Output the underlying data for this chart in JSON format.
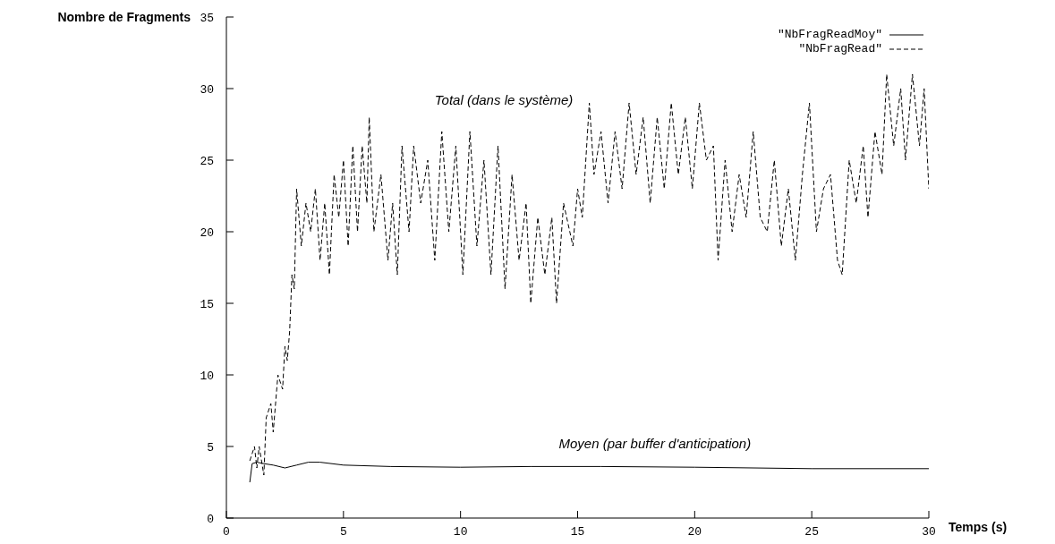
{
  "chart_data": {
    "type": "line",
    "xlabel": "Temps (s)",
    "ylabel": "Nombre de Fragments",
    "xlim": [
      0,
      30
    ],
    "xticks": [
      0,
      5,
      10,
      15,
      20,
      25,
      30
    ],
    "ylim": [
      0,
      35
    ],
    "yticks": [
      0,
      5,
      10,
      15,
      20,
      25,
      30,
      35
    ],
    "grid": false,
    "legend": "top right",
    "marker": "none",
    "annotations": [
      "Total (dans le système)",
      "Moyen (par buffer d'anticipation)"
    ],
    "series": [
      {
        "name": "\"NbFragReadMoy\"",
        "color": "#000000",
        "line_style": "solid",
        "x": [
          1.0,
          1.1,
          1.3,
          1.6,
          2.0,
          2.5,
          3.0,
          3.5,
          4.0,
          5,
          7,
          10,
          13,
          16,
          20,
          25,
          30
        ],
        "values": [
          2.5,
          3.8,
          3.9,
          3.8,
          3.7,
          3.5,
          3.7,
          3.9,
          3.9,
          3.7,
          3.6,
          3.55,
          3.6,
          3.6,
          3.55,
          3.45,
          3.45
        ]
      },
      {
        "name": "\"NbFragRead\"",
        "color": "#000000",
        "line_style": "dashed",
        "x": [
          1.0,
          1.2,
          1.3,
          1.4,
          1.6,
          1.7,
          1.9,
          2.0,
          2.2,
          2.4,
          2.5,
          2.6,
          2.7,
          2.8,
          2.9,
          3.0,
          3.2,
          3.4,
          3.6,
          3.8,
          4.0,
          4.2,
          4.4,
          4.6,
          4.8,
          5.0,
          5.2,
          5.4,
          5.6,
          5.8,
          6.0,
          6.1,
          6.3,
          6.6,
          6.9,
          7.1,
          7.3,
          7.5,
          7.8,
          8.0,
          8.3,
          8.6,
          8.9,
          9.2,
          9.5,
          9.8,
          10.1,
          10.4,
          10.7,
          11.0,
          11.3,
          11.6,
          11.9,
          12.2,
          12.5,
          12.8,
          13.0,
          13.3,
          13.6,
          13.9,
          14.1,
          14.4,
          14.8,
          15.0,
          15.2,
          15.5,
          15.7,
          16.0,
          16.3,
          16.6,
          16.9,
          17.2,
          17.5,
          17.8,
          18.1,
          18.4,
          18.7,
          19.0,
          19.3,
          19.6,
          19.9,
          20.2,
          20.5,
          20.8,
          21.0,
          21.3,
          21.6,
          21.9,
          22.2,
          22.5,
          22.8,
          23.1,
          23.4,
          23.7,
          24.0,
          24.3,
          24.6,
          24.9,
          25.2,
          25.5,
          25.8,
          26.1,
          26.3,
          26.6,
          26.9,
          27.2,
          27.4,
          27.7,
          28.0,
          28.2,
          28.5,
          28.8,
          29.0,
          29.3,
          29.6,
          29.8,
          30.0
        ],
        "values": [
          4,
          5,
          3.5,
          5,
          3,
          7,
          8,
          6,
          10,
          9,
          12,
          11,
          13,
          17,
          16,
          23,
          19,
          22,
          20,
          23,
          18,
          22,
          17,
          24,
          21,
          25,
          19,
          26,
          20,
          26,
          22,
          28,
          20,
          24,
          18,
          22,
          17,
          26,
          20,
          26,
          22,
          25,
          18,
          27,
          20,
          26,
          17,
          27,
          19,
          25,
          17,
          26,
          16,
          24,
          18,
          22,
          15,
          21,
          17,
          21,
          15,
          22,
          19,
          23,
          21,
          29,
          24,
          27,
          22,
          27,
          23,
          29,
          24,
          28,
          22,
          28,
          23,
          29,
          24,
          28,
          23,
          29,
          25,
          26,
          18,
          25,
          20,
          24,
          21,
          27,
          21,
          20,
          25,
          19,
          23,
          18,
          24,
          29,
          20,
          23,
          24,
          18,
          17,
          25,
          22,
          26,
          21,
          27,
          24,
          31,
          26,
          30,
          25,
          31,
          26,
          30,
          23
        ]
      }
    ]
  }
}
